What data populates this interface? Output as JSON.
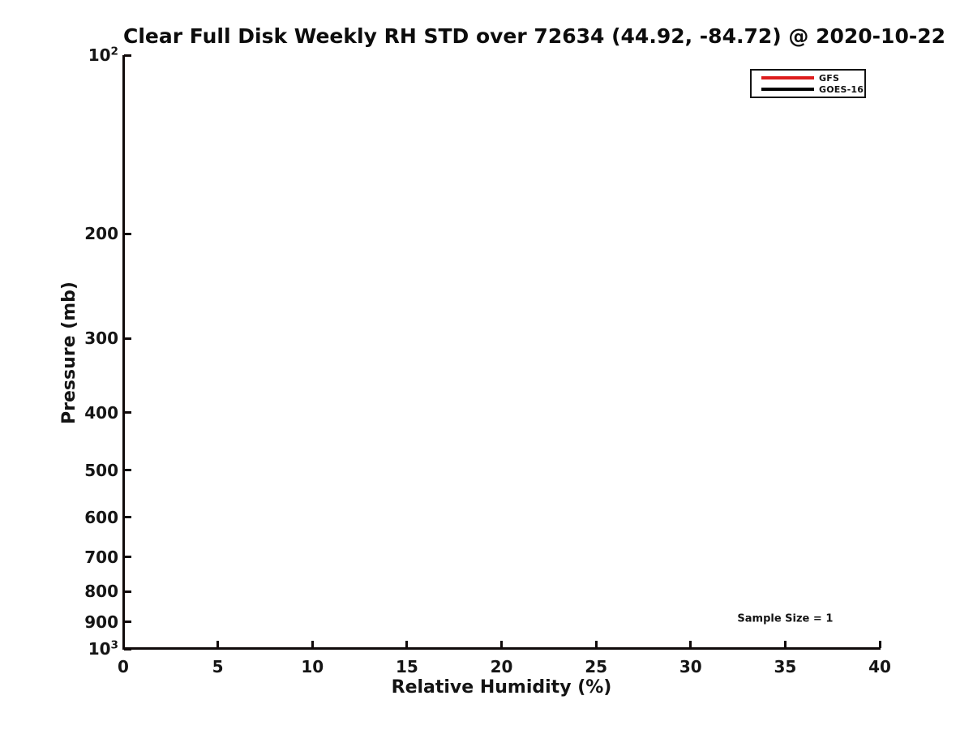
{
  "chart_data": {
    "type": "line",
    "title": "Clear Full Disk Weekly RH STD over 72634 (44.92, -84.72) @ 2020-10-22",
    "xlabel": "Relative Humidity (%)",
    "ylabel": "Pressure (mb)",
    "xlim": [
      0,
      40
    ],
    "x_ticks": [
      0,
      5,
      10,
      15,
      20,
      25,
      30,
      35,
      40
    ],
    "y_scale": "log",
    "ylim": [
      100,
      1000
    ],
    "y_axis_direction": "pressure-increasing-downward",
    "y_ticks": [
      100,
      200,
      300,
      400,
      500,
      600,
      700,
      800,
      900,
      1000
    ],
    "y_tick_labels": [
      "10^2",
      "200",
      "300",
      "400",
      "500",
      "600",
      "700",
      "800",
      "900",
      "10^3"
    ],
    "grid": false,
    "legend": {
      "position": "upper-right",
      "entries": [
        {
          "label": "GFS",
          "color": "#dd1c1c"
        },
        {
          "label": "GOES-16",
          "color": "#000000"
        }
      ]
    },
    "series": [
      {
        "name": "GFS",
        "color": "#dd1c1c",
        "points": []
      },
      {
        "name": "GOES-16",
        "color": "#000000",
        "points": []
      }
    ],
    "annotations": [
      {
        "text": "Sample Size = 1",
        "x": 35,
        "pressure_mb": 890
      }
    ]
  }
}
